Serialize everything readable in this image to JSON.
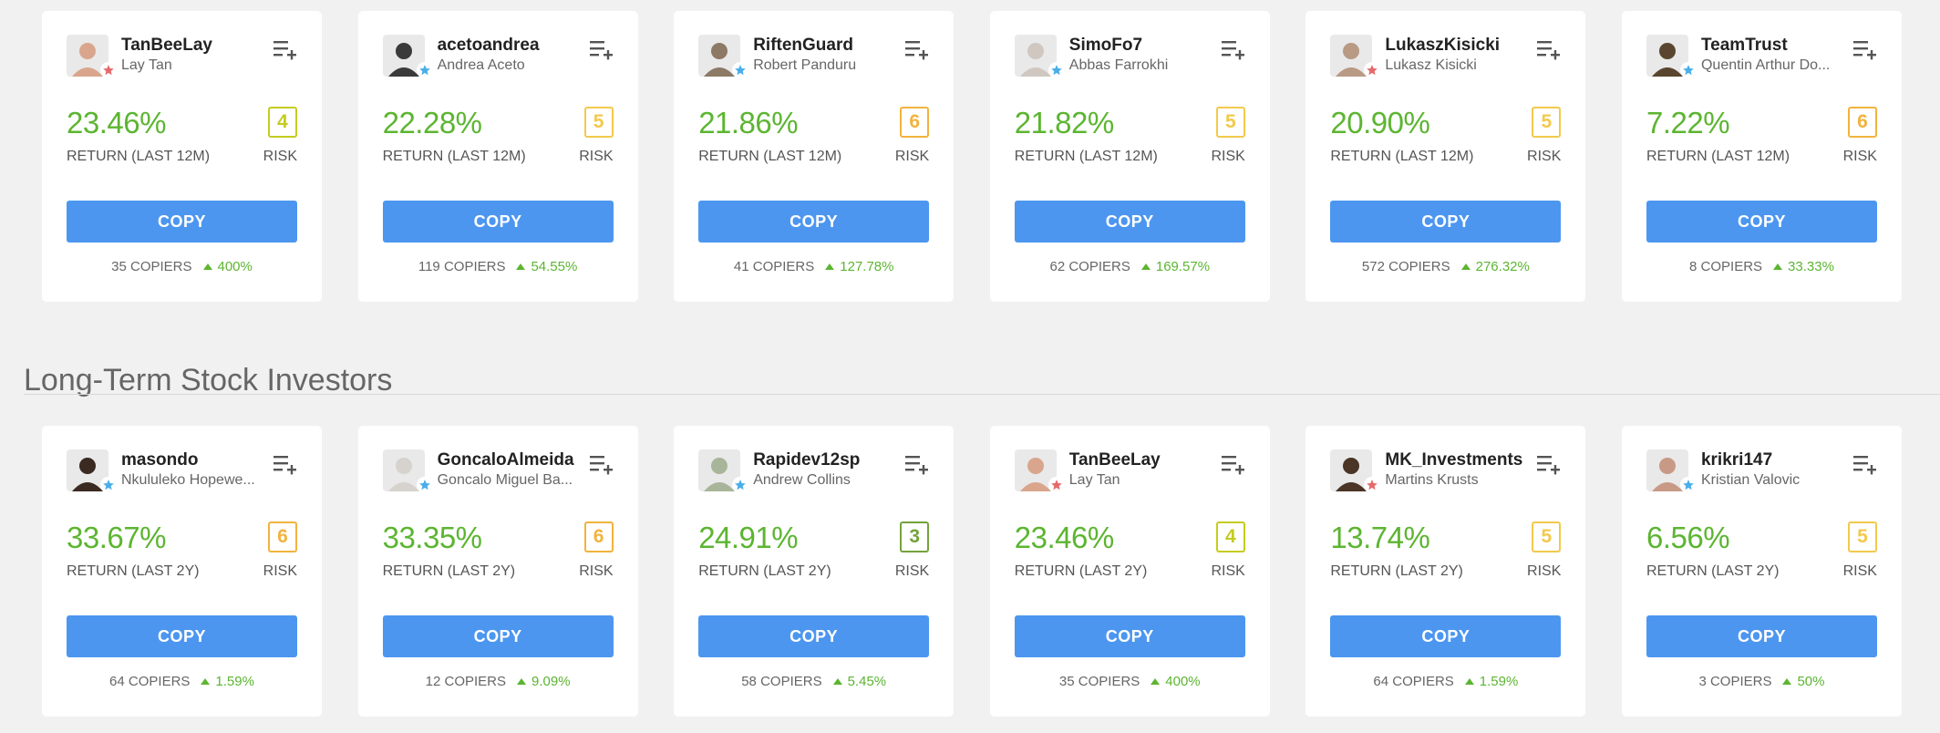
{
  "colors": {
    "return": "#5cb531",
    "copy_button": "#4c96f0",
    "risk_3": "#74a23a",
    "risk_4": "#c5cc1f",
    "risk_5": "#f2c94c",
    "risk_6": "#f2b33d",
    "star_blue": "#4aaee8",
    "star_red": "#e56a6a"
  },
  "section_2": {
    "title": "Long-Term Stock Investors"
  },
  "row_1": [
    {
      "username": "TanBeeLay",
      "fullname": "Lay Tan",
      "return": "23.46%",
      "return_label": "RETURN (LAST 12M)",
      "risk": "4",
      "risk_color": "#c5cc1f",
      "risk_label": "RISK",
      "copy_label": "COPY",
      "copiers": "35",
      "copiers_label": "COPIERS",
      "change": "400%",
      "star": "red-star-icon",
      "star_color": "#e56a6a",
      "avatar_color": "#d9a68d"
    },
    {
      "username": "acetoandrea",
      "fullname": "Andrea Aceto",
      "return": "22.28%",
      "return_label": "RETURN (LAST 12M)",
      "risk": "5",
      "risk_color": "#f2c94c",
      "risk_label": "RISK",
      "copy_label": "COPY",
      "copiers": "119",
      "copiers_label": "COPIERS",
      "change": "54.55%",
      "star": "blue-star-icon",
      "star_color": "#4aaee8",
      "avatar_color": "#3a3a3a"
    },
    {
      "username": "RiftenGuard",
      "fullname": "Robert Panduru",
      "return": "21.86%",
      "return_label": "RETURN (LAST 12M)",
      "risk": "6",
      "risk_color": "#f2b33d",
      "risk_label": "RISK",
      "copy_label": "COPY",
      "copiers": "41",
      "copiers_label": "COPIERS",
      "change": "127.78%",
      "star": "blue-star-icon",
      "star_color": "#4aaee8",
      "avatar_color": "#8c7a66"
    },
    {
      "username": "SimoFo7",
      "fullname": "Abbas Farrokhi",
      "return": "21.82%",
      "return_label": "RETURN (LAST 12M)",
      "risk": "5",
      "risk_color": "#f2c94c",
      "risk_label": "RISK",
      "copy_label": "COPY",
      "copiers": "62",
      "copiers_label": "COPIERS",
      "change": "169.57%",
      "star": "blue-star-icon",
      "star_color": "#4aaee8",
      "avatar_color": "#cfc7c0"
    },
    {
      "username": "LukaszKisicki",
      "fullname": "Lukasz Kisicki",
      "return": "20.90%",
      "return_label": "RETURN (LAST 12M)",
      "risk": "5",
      "risk_color": "#f2c94c",
      "risk_label": "RISK",
      "copy_label": "COPY",
      "copiers": "572",
      "copiers_label": "COPIERS",
      "change": "276.32%",
      "star": "red-star-icon",
      "star_color": "#e56a6a",
      "avatar_color": "#b99a85"
    },
    {
      "username": "TeamTrust",
      "fullname": "Quentin Arthur Do...",
      "return": "7.22%",
      "return_label": "RETURN (LAST 12M)",
      "risk": "6",
      "risk_color": "#f2b33d",
      "risk_label": "RISK",
      "copy_label": "COPY",
      "copiers": "8",
      "copiers_label": "COPIERS",
      "change": "33.33%",
      "star": "blue-star-icon",
      "star_color": "#4aaee8",
      "avatar_color": "#5a4630"
    }
  ],
  "row_2": [
    {
      "username": "masondo",
      "fullname": "Nkululeko Hopewe...",
      "return": "33.67%",
      "return_label": "RETURN (LAST 2Y)",
      "risk": "6",
      "risk_color": "#f2b33d",
      "risk_label": "RISK",
      "copy_label": "COPY",
      "copiers": "64",
      "copiers_label": "COPIERS",
      "change": "1.59%",
      "star": "blue-star-icon",
      "star_color": "#4aaee8",
      "avatar_color": "#3b2a22"
    },
    {
      "username": "GoncaloAlmeida",
      "fullname": "Goncalo Miguel Ba...",
      "return": "33.35%",
      "return_label": "RETURN (LAST 2Y)",
      "risk": "6",
      "risk_color": "#f2b33d",
      "risk_label": "RISK",
      "copy_label": "COPY",
      "copiers": "12",
      "copiers_label": "COPIERS",
      "change": "9.09%",
      "star": "blue-star-icon",
      "star_color": "#4aaee8",
      "avatar_color": "#d6d2cd"
    },
    {
      "username": "Rapidev12sp",
      "fullname": "Andrew Collins",
      "return": "24.91%",
      "return_label": "RETURN (LAST 2Y)",
      "risk": "3",
      "risk_color": "#74a23a",
      "risk_label": "RISK",
      "copy_label": "COPY",
      "copiers": "58",
      "copiers_label": "COPIERS",
      "change": "5.45%",
      "star": "blue-star-icon",
      "star_color": "#4aaee8",
      "avatar_color": "#a8b59a"
    },
    {
      "username": "TanBeeLay",
      "fullname": "Lay Tan",
      "return": "23.46%",
      "return_label": "RETURN (LAST 2Y)",
      "risk": "4",
      "risk_color": "#c5cc1f",
      "risk_label": "RISK",
      "copy_label": "COPY",
      "copiers": "35",
      "copiers_label": "COPIERS",
      "change": "400%",
      "star": "red-star-icon",
      "star_color": "#e56a6a",
      "avatar_color": "#d9a68d"
    },
    {
      "username": "MK_Investments",
      "fullname": "Martins Krusts",
      "return": "13.74%",
      "return_label": "RETURN (LAST 2Y)",
      "risk": "5",
      "risk_color": "#f2c94c",
      "risk_label": "RISK",
      "copy_label": "COPY",
      "copiers": "64",
      "copiers_label": "COPIERS",
      "change": "1.59%",
      "star": "red-star-icon",
      "star_color": "#e56a6a",
      "avatar_color": "#4a3526"
    },
    {
      "username": "krikri147",
      "fullname": "Kristian Valovic",
      "return": "6.56%",
      "return_label": "RETURN (LAST 2Y)",
      "risk": "5",
      "risk_color": "#f2c94c",
      "risk_label": "RISK",
      "copy_label": "COPY",
      "copiers": "3",
      "copiers_label": "COPIERS",
      "change": "50%",
      "star": "blue-star-icon",
      "star_color": "#4aaee8",
      "avatar_color": "#c89a86"
    }
  ]
}
